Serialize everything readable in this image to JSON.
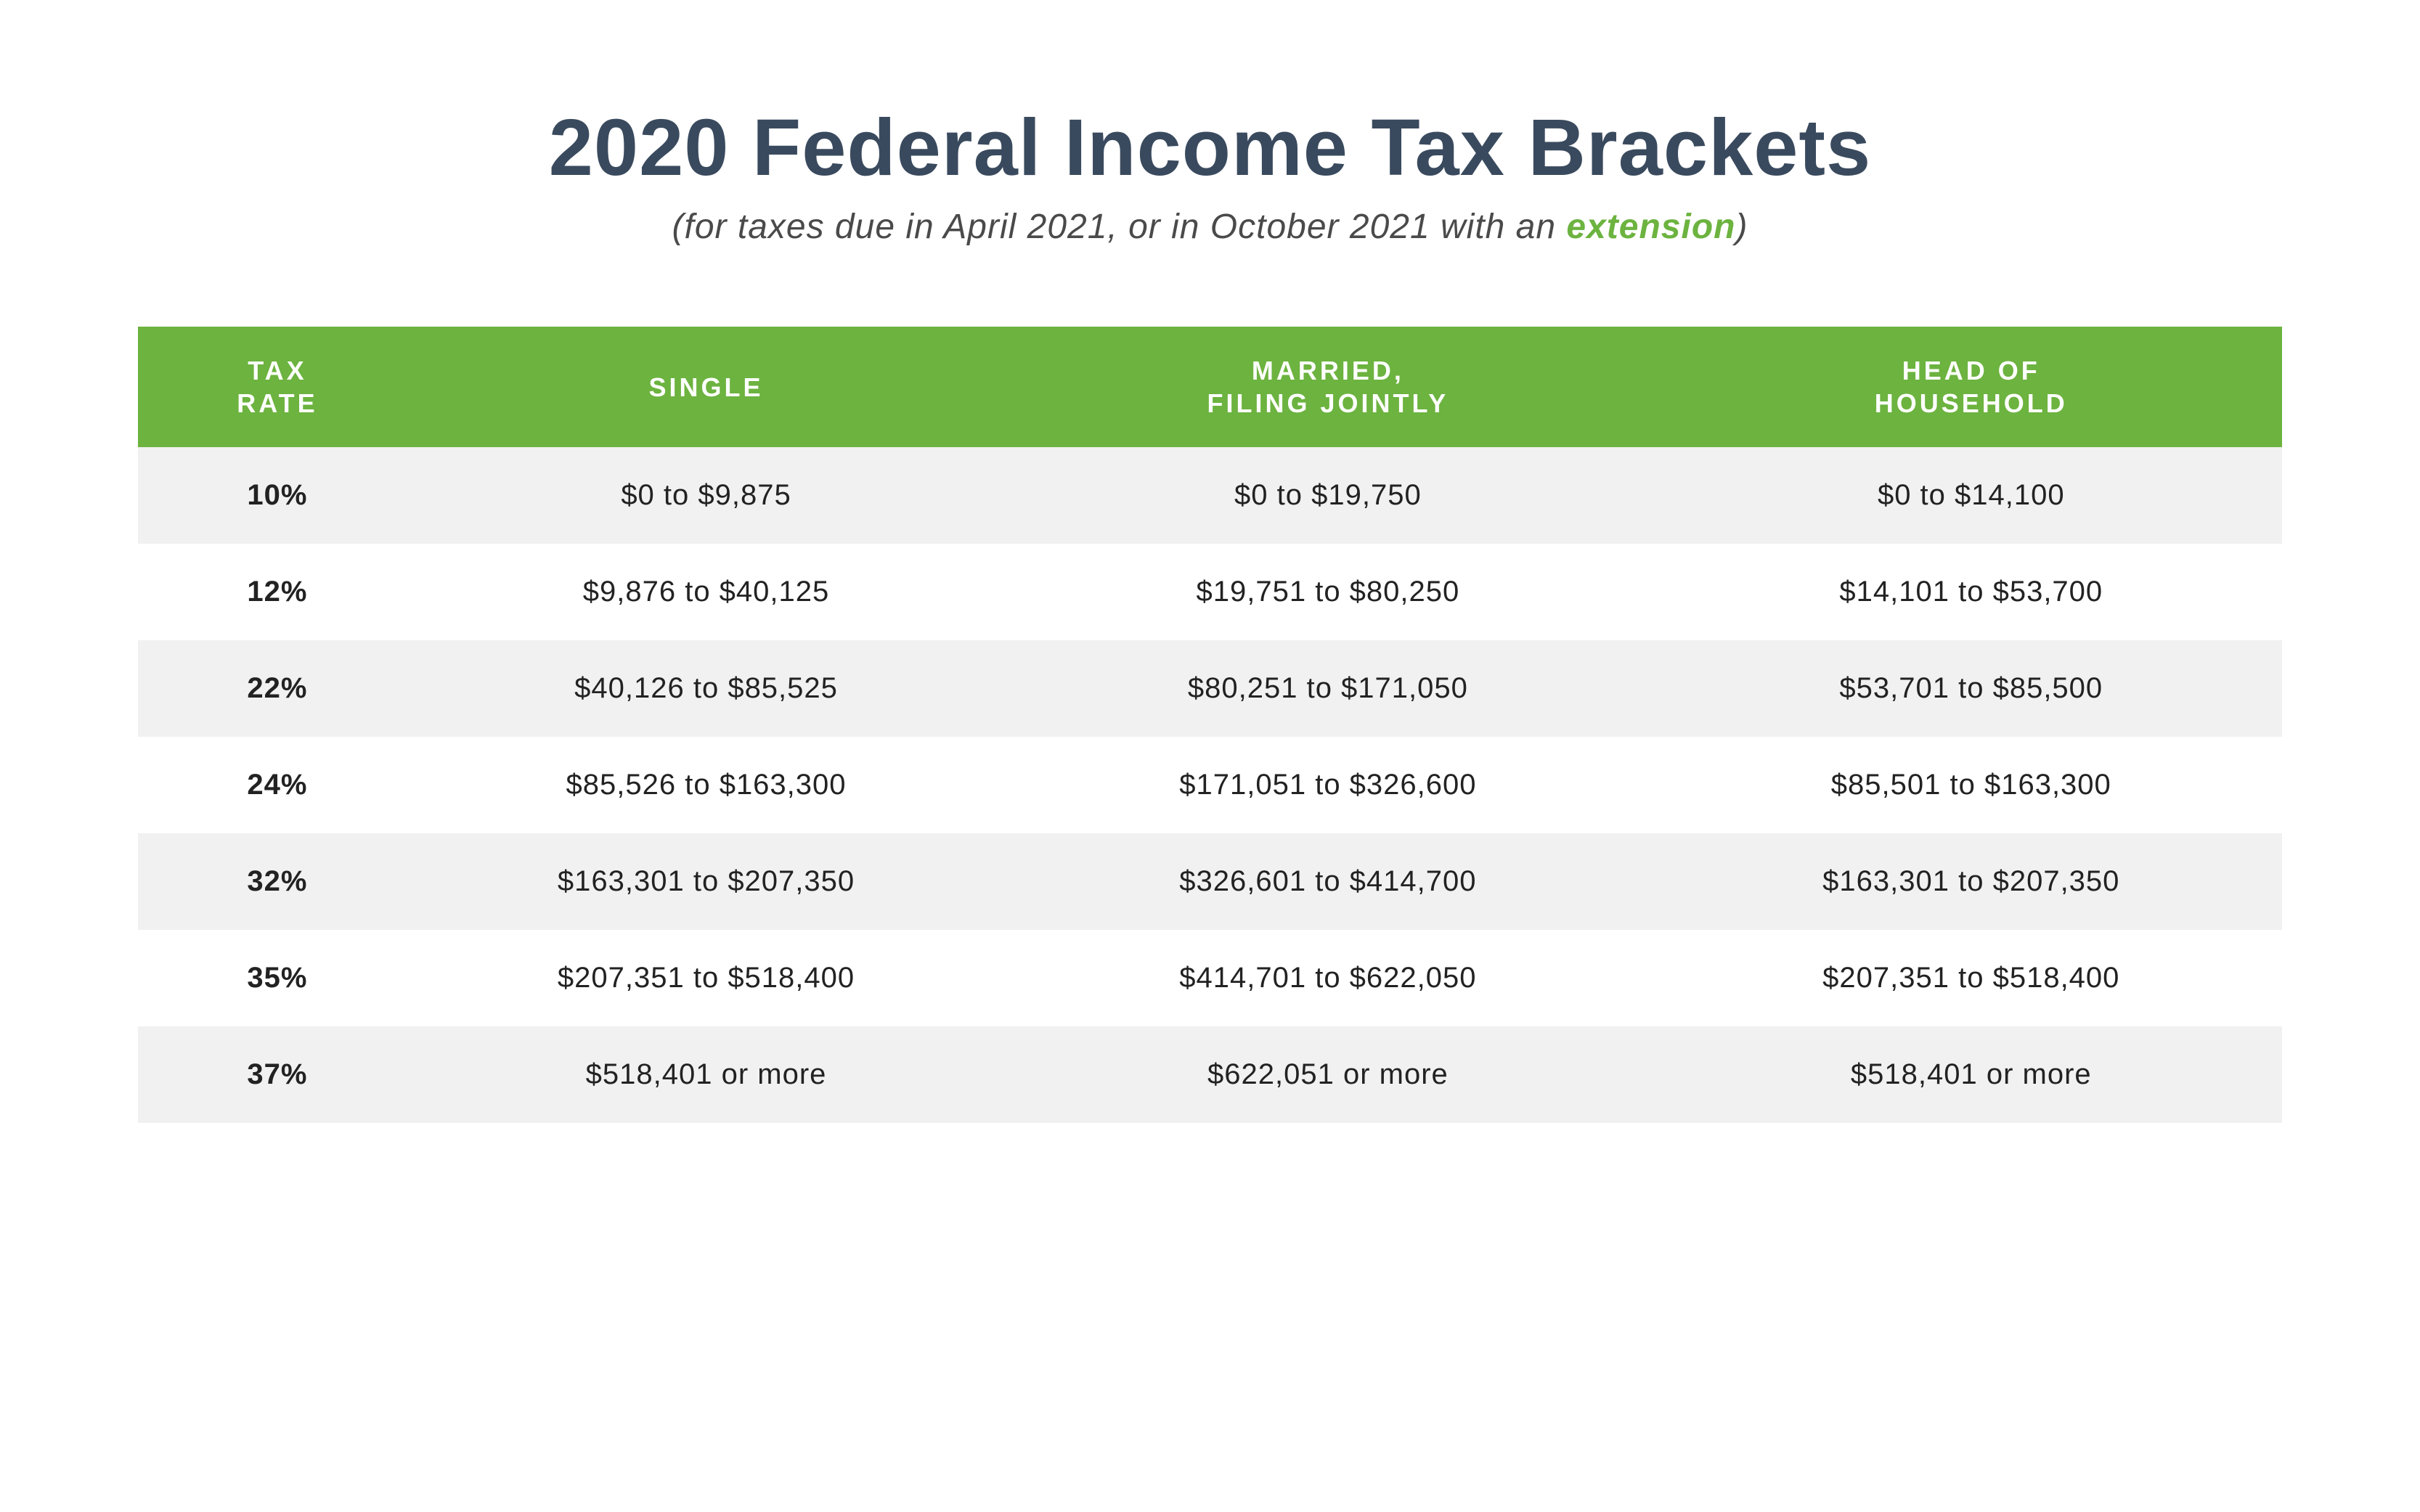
{
  "title": "2020 Federal Income Tax Brackets",
  "subtitle_pre": "(for taxes due in April 2021, or in October 2021 with an ",
  "subtitle_link": "extension",
  "subtitle_post": ")",
  "colors": {
    "title": "#3a4a5e",
    "subtitle": "#4a4a4a",
    "extension": "#6cb33f",
    "header_bg": "#6cb33f",
    "header_text": "#ffffff",
    "row_odd_bg": "#f1f1f1",
    "row_even_bg": "#ffffff",
    "body_text": "#222222"
  },
  "fonts": {
    "title_size": 110,
    "subtitle_size": 48,
    "header_size": 36,
    "cell_size": 40
  },
  "columns": [
    "TAX\nRATE",
    "SINGLE",
    "MARRIED,\nFILING JOINTLY",
    "HEAD OF\nHOUSEHOLD"
  ],
  "rows": [
    {
      "rate": "10%",
      "single": "$0 to $9,875",
      "mfj": "$0 to $19,750",
      "hoh": "$0 to $14,100"
    },
    {
      "rate": "12%",
      "single": "$9,876 to $40,125",
      "mfj": "$19,751 to $80,250",
      "hoh": "$14,101 to $53,700"
    },
    {
      "rate": "22%",
      "single": "$40,126 to $85,525",
      "mfj": "$80,251 to $171,050",
      "hoh": "$53,701 to $85,500"
    },
    {
      "rate": "24%",
      "single": "$85,526 to $163,300",
      "mfj": "$171,051 to $326,600",
      "hoh": "$85,501 to $163,300"
    },
    {
      "rate": "32%",
      "single": "$163,301 to $207,350",
      "mfj": "$326,601 to $414,700",
      "hoh": "$163,301 to $207,350"
    },
    {
      "rate": "35%",
      "single": "$207,351 to $518,400",
      "mfj": "$414,701 to $622,050",
      "hoh": "$207,351 to $518,400"
    },
    {
      "rate": "37%",
      "single": "$518,401 or more",
      "mfj": "$622,051 or more",
      "hoh": "$518,401 or more"
    }
  ]
}
